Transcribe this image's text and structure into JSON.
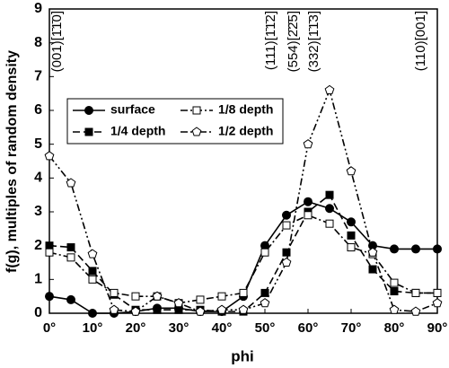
{
  "chart_data": {
    "type": "line",
    "xlabel": "phi",
    "ylabel": "f(g), multiples of random density",
    "x": [
      0,
      5,
      10,
      15,
      20,
      25,
      30,
      35,
      40,
      45,
      50,
      55,
      60,
      65,
      70,
      75,
      80,
      85,
      90
    ],
    "series": [
      {
        "name": "surface",
        "color": "#000000",
        "marker": "circle",
        "filled": true,
        "dash": "none",
        "values": [
          0.5,
          0.4,
          0.0,
          0.0,
          0.05,
          0.15,
          0.15,
          0.05,
          0.05,
          0.5,
          2.0,
          2.9,
          3.3,
          3.1,
          2.7,
          2.0,
          1.9,
          1.9,
          1.9
        ]
      },
      {
        "name": "1/4 depth",
        "color": "#000000",
        "marker": "square",
        "filled": true,
        "dash": "8,4",
        "values": [
          2.0,
          1.95,
          1.25,
          0.55,
          0.1,
          0.1,
          0.1,
          0.1,
          0.05,
          0.05,
          0.6,
          1.8,
          3.0,
          3.5,
          2.3,
          1.3,
          0.65,
          0.6,
          0.6
        ]
      },
      {
        "name": "1/8 depth",
        "color": "#000000",
        "marker": "square",
        "filled": false,
        "dash": "8,3,2,3",
        "values": [
          1.8,
          1.65,
          1.0,
          0.6,
          0.5,
          0.5,
          0.3,
          0.4,
          0.5,
          0.6,
          1.8,
          2.6,
          2.9,
          2.65,
          1.95,
          1.75,
          0.9,
          0.6,
          0.6
        ]
      },
      {
        "name": "1/2 depth",
        "color": "#000000",
        "marker": "pentagon",
        "filled": false,
        "dash": "8,3,2,3,2,3",
        "values": [
          4.65,
          3.85,
          1.75,
          0.1,
          0.05,
          0.5,
          0.3,
          0.05,
          0.1,
          0.1,
          0.3,
          1.5,
          5.0,
          6.6,
          4.2,
          1.8,
          0.1,
          0.05,
          0.3
        ]
      }
    ],
    "xlim": [
      0,
      90
    ],
    "xticks": [
      {
        "value": 0,
        "label": "0°"
      },
      {
        "value": 10,
        "label": "10°"
      },
      {
        "value": 20,
        "label": "20°"
      },
      {
        "value": 30,
        "label": "30°"
      },
      {
        "value": 40,
        "label": "40°"
      },
      {
        "value": 50,
        "label": "50°"
      },
      {
        "value": 60,
        "label": "60°"
      },
      {
        "value": 70,
        "label": "70°"
      },
      {
        "value": 80,
        "label": "80°"
      },
      {
        "value": 90,
        "label": "90°"
      }
    ],
    "ylim": [
      0,
      9
    ],
    "yticks": [
      0,
      1,
      2,
      3,
      4,
      5,
      6,
      7,
      8,
      9
    ],
    "grid": false,
    "legend": "upper left",
    "annotations": [
      "(001)[1̄1̄0]",
      "(111)[1̄1̄2]",
      "(554)[2̄2̄5]",
      "(332)[1̄1̄3]",
      "(110)[001]"
    ]
  }
}
